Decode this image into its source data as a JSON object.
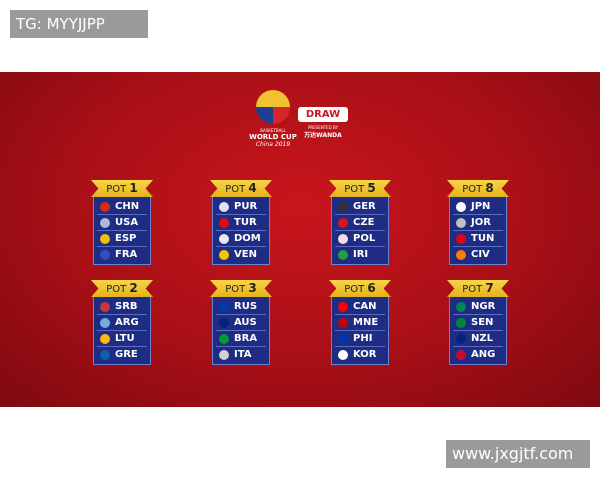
{
  "watermarks": {
    "top_left": "TG: MYYJJPP",
    "bottom_right": "www.jxgjtf.com"
  },
  "logo": {
    "line1": "BASKETBALL",
    "line2": "WORLD CUP",
    "line3": "China 2019",
    "fiba": "FIBA"
  },
  "draw": {
    "label": "DRAW",
    "presented": "PRESENTED BY",
    "sponsor": "万达WANDA"
  },
  "pots": [
    {
      "pot": "POT",
      "num": "1",
      "teams": [
        {
          "code": "CHN",
          "color": "#de2910"
        },
        {
          "code": "USA",
          "color": "#b0b8d8"
        },
        {
          "code": "ESP",
          "color": "#f1bf00"
        },
        {
          "code": "FRA",
          "color": "#3050c0"
        }
      ]
    },
    {
      "pot": "POT",
      "num": "4",
      "teams": [
        {
          "code": "PUR",
          "color": "#e0e0f0"
        },
        {
          "code": "TUR",
          "color": "#e30a17"
        },
        {
          "code": "DOM",
          "color": "#e8e8f0"
        },
        {
          "code": "VEN",
          "color": "#f4c300"
        }
      ]
    },
    {
      "pot": "POT",
      "num": "5",
      "teams": [
        {
          "code": "GER",
          "color": "#333333"
        },
        {
          "code": "CZE",
          "color": "#d7141a"
        },
        {
          "code": "POL",
          "color": "#f0e0e0"
        },
        {
          "code": "IRI",
          "color": "#239f40"
        }
      ]
    },
    {
      "pot": "POT",
      "num": "8",
      "teams": [
        {
          "code": "JPN",
          "color": "#ffffff"
        },
        {
          "code": "JOR",
          "color": "#c0c0c0"
        },
        {
          "code": "TUN",
          "color": "#e70013"
        },
        {
          "code": "CIV",
          "color": "#f77f00"
        }
      ]
    },
    {
      "pot": "POT",
      "num": "2",
      "teams": [
        {
          "code": "SRB",
          "color": "#c6363c"
        },
        {
          "code": "ARG",
          "color": "#74acdf"
        },
        {
          "code": "LTU",
          "color": "#fdb913"
        },
        {
          "code": "GRE",
          "color": "#0d5eaf"
        }
      ]
    },
    {
      "pot": "POT",
      "num": "3",
      "teams": [
        {
          "code": "RUS",
          "color": "#0039a6"
        },
        {
          "code": "AUS",
          "color": "#00247d"
        },
        {
          "code": "BRA",
          "color": "#009c3b"
        },
        {
          "code": "ITA",
          "color": "#d0d0d0"
        }
      ]
    },
    {
      "pot": "POT",
      "num": "6",
      "teams": [
        {
          "code": "CAN",
          "color": "#ff0000"
        },
        {
          "code": "MNE",
          "color": "#c40308"
        },
        {
          "code": "PHI",
          "color": "#0038a8"
        },
        {
          "code": "KOR",
          "color": "#ffffff"
        }
      ]
    },
    {
      "pot": "POT",
      "num": "7",
      "teams": [
        {
          "code": "NGR",
          "color": "#008751"
        },
        {
          "code": "SEN",
          "color": "#00853f"
        },
        {
          "code": "NZL",
          "color": "#00247d"
        },
        {
          "code": "ANG",
          "color": "#cc092f"
        }
      ]
    }
  ]
}
